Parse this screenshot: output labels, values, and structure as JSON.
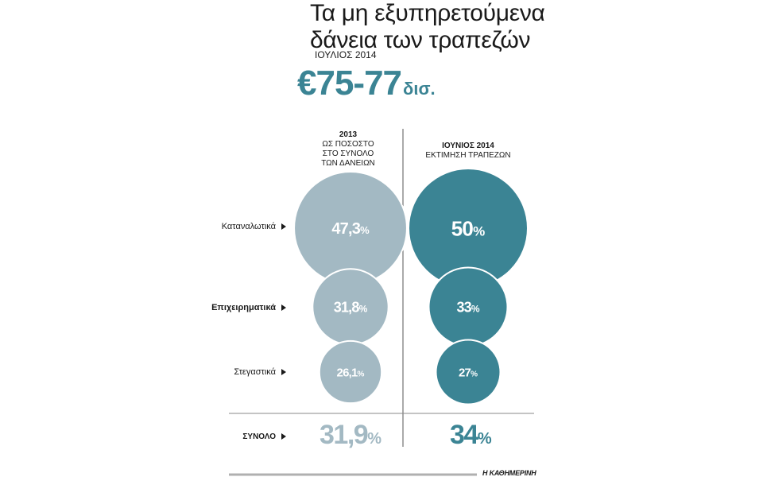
{
  "title_lines": [
    "Τα μη εξυπηρετούμενα",
    "δάνεια των τραπεζών"
  ],
  "date_label": "ΙΟΥΛΙΟΣ 2014",
  "total": {
    "value": "€75-77",
    "unit": "δισ."
  },
  "source": "Η ΚΑΘΗΜΕΡΙΝΗ",
  "chart_data": {
    "type": "bubble",
    "title": "Τα μη εξυπηρετούμενα δάνεια των τραπεζών",
    "categories": [
      "Καταναλωτικά",
      "Επιχειρηματικά",
      "Στεγαστικά"
    ],
    "series": [
      {
        "name": "2013",
        "subtitle": [
          "ΩΣ ΠΟΣΟΣΤΟ",
          "ΣΤΟ ΣΥΝΟΛΟ",
          "ΤΩΝ ΔΑΝΕΙΩΝ"
        ],
        "values": [
          47.3,
          31.8,
          26.1
        ],
        "labels": [
          "47,3",
          "31,8",
          "26,1"
        ],
        "color": "#a3b9c3",
        "total": 31.9,
        "total_label": "31,9"
      },
      {
        "name": "ΙΟΥΝΙΟΣ 2014",
        "subtitle": [
          "ΕΚΤΙΜΗΣΗ ΤΡΑΠΕΖΩΝ"
        ],
        "values": [
          50,
          33,
          27
        ],
        "labels": [
          "50",
          "33",
          "27"
        ],
        "color": "#3b8494",
        "total": 34,
        "total_label": "34"
      }
    ],
    "total_label": "ΣΥΝΟΛΟ",
    "unit": "%"
  }
}
